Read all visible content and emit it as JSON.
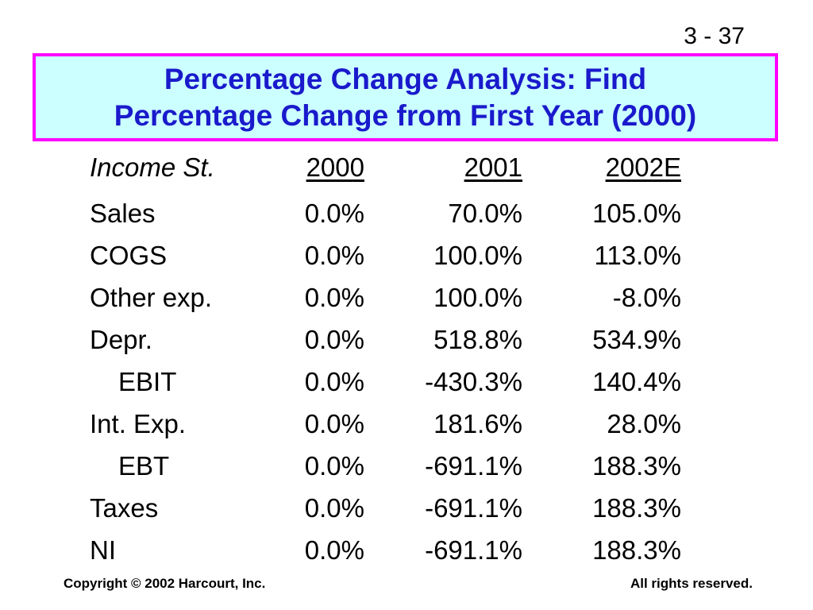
{
  "slide": {
    "number": "3 - 37",
    "title_line1": "Percentage Change Analysis: Find",
    "title_line2": "Percentage Change from First Year (2000)",
    "colors": {
      "title_text": "#1a1acc",
      "title_background": "#ccffff",
      "title_border": "#ff00ff"
    }
  },
  "table": {
    "header": {
      "label": "Income St.",
      "columns": [
        "2000",
        "2001",
        "2002E"
      ]
    },
    "rows": [
      {
        "label": "Sales",
        "values": [
          "0.0%",
          "70.0%",
          "105.0%"
        ]
      },
      {
        "label": "COGS",
        "values": [
          "0.0%",
          "100.0%",
          "113.0%"
        ]
      },
      {
        "label": "Other exp.",
        "values": [
          "0.0%",
          "100.0%",
          "-8.0%"
        ]
      },
      {
        "label": "Depr.",
        "values": [
          "0.0%",
          "518.8%",
          "534.9%"
        ]
      },
      {
        "label": "EBIT",
        "values": [
          "0.0%",
          "-430.3%",
          "140.4%"
        ]
      },
      {
        "label": "Int. Exp.",
        "values": [
          "0.0%",
          "181.6%",
          "28.0%"
        ]
      },
      {
        "label": "EBT",
        "values": [
          "0.0%",
          "-691.1%",
          "188.3%"
        ]
      },
      {
        "label": "Taxes",
        "values": [
          "0.0%",
          "-691.1%",
          "188.3%"
        ]
      },
      {
        "label": "NI",
        "values": [
          "0.0%",
          "-691.1%",
          "188.3%"
        ]
      }
    ]
  },
  "footer": {
    "copyright": "Copyright © 2002 Harcourt, Inc.",
    "rights": "All rights reserved."
  }
}
